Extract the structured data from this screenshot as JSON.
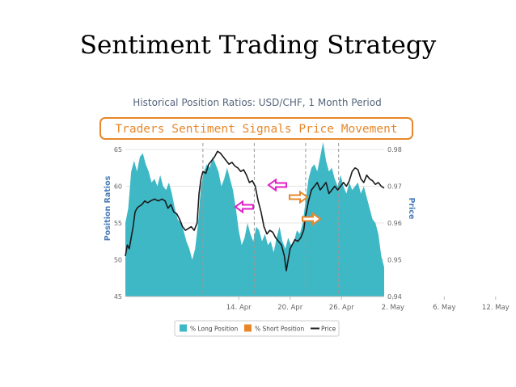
{
  "slide": {
    "title": "Sentiment Trading Strategy"
  },
  "chart_data": {
    "type": "area",
    "title": "Historical Position Ratios: USD/CHF, 1 Month Period",
    "banner": "Traders Sentiment Signals Price Movement",
    "xlabel": "",
    "ylabel": "Position Ratios",
    "y2label": "Price",
    "x_ticks": [
      "14. Apr",
      "20. Apr",
      "26. Apr",
      "2. May",
      "6. May",
      "12. May"
    ],
    "ylim": [
      45,
      65
    ],
    "y_ticks": [
      "45",
      "50",
      "55",
      "60",
      "65"
    ],
    "y2lim": [
      0.94,
      0.98
    ],
    "y2_ticks": [
      "0.94",
      "0.95",
      "0.96",
      "0.97",
      "0.98"
    ],
    "legend": [
      {
        "label": "% Long Position",
        "color": "#3fb8c6"
      },
      {
        "label": "% Short Position",
        "color": "#e8872a"
      },
      {
        "label": "Price",
        "color": "#222222"
      }
    ],
    "legend_position": "bottom",
    "dashed_vlines_days": [
      8.0,
      13.3,
      18.6,
      22.0
    ],
    "series": [
      {
        "name": "% Long Position",
        "axis": "left",
        "color": "#3fb8c6",
        "points": [
          [
            0.0,
            55.0
          ],
          [
            0.3,
            57.0
          ],
          [
            0.6,
            62.0
          ],
          [
            0.9,
            63.5
          ],
          [
            1.2,
            62.0
          ],
          [
            1.5,
            64.0
          ],
          [
            1.8,
            64.5
          ],
          [
            2.1,
            63.0
          ],
          [
            2.4,
            62.0
          ],
          [
            2.7,
            60.5
          ],
          [
            3.0,
            61.0
          ],
          [
            3.3,
            60.0
          ],
          [
            3.6,
            61.5
          ],
          [
            3.9,
            60.0
          ],
          [
            4.2,
            59.5
          ],
          [
            4.5,
            60.5
          ],
          [
            4.8,
            59.0
          ],
          [
            5.1,
            57.0
          ],
          [
            5.4,
            55.5
          ],
          [
            5.7,
            55.0
          ],
          [
            6.0,
            54.0
          ],
          [
            6.3,
            52.5
          ],
          [
            6.6,
            51.5
          ],
          [
            6.9,
            50.0
          ],
          [
            7.2,
            51.5
          ],
          [
            7.5,
            55.0
          ],
          [
            7.8,
            60.0
          ],
          [
            8.1,
            62.0
          ],
          [
            8.4,
            63.0
          ],
          [
            8.7,
            62.5
          ],
          [
            9.0,
            64.0
          ],
          [
            9.3,
            63.0
          ],
          [
            9.6,
            62.0
          ],
          [
            9.9,
            60.0
          ],
          [
            10.2,
            61.0
          ],
          [
            10.5,
            62.5
          ],
          [
            10.8,
            61.0
          ],
          [
            11.1,
            59.5
          ],
          [
            11.4,
            57.0
          ],
          [
            11.7,
            54.0
          ],
          [
            12.0,
            52.0
          ],
          [
            12.3,
            53.0
          ],
          [
            12.6,
            55.0
          ],
          [
            12.9,
            53.5
          ],
          [
            13.2,
            52.5
          ],
          [
            13.5,
            54.5
          ],
          [
            13.8,
            54.0
          ],
          [
            14.1,
            52.5
          ],
          [
            14.4,
            53.5
          ],
          [
            14.7,
            52.0
          ],
          [
            15.0,
            52.5
          ],
          [
            15.3,
            51.0
          ],
          [
            15.6,
            53.0
          ],
          [
            15.9,
            54.5
          ],
          [
            16.2,
            52.5
          ],
          [
            16.5,
            51.5
          ],
          [
            16.8,
            53.0
          ],
          [
            17.1,
            52.0
          ],
          [
            17.4,
            52.5
          ],
          [
            17.7,
            54.0
          ],
          [
            18.0,
            53.5
          ],
          [
            18.3,
            55.0
          ],
          [
            18.6,
            58.0
          ],
          [
            18.9,
            61.0
          ],
          [
            19.2,
            62.5
          ],
          [
            19.5,
            63.0
          ],
          [
            19.8,
            62.0
          ],
          [
            20.1,
            64.0
          ],
          [
            20.4,
            66.0
          ],
          [
            20.7,
            63.5
          ],
          [
            21.0,
            62.0
          ],
          [
            21.3,
            62.5
          ],
          [
            21.6,
            61.0
          ],
          [
            21.9,
            60.0
          ],
          [
            22.2,
            61.5
          ],
          [
            22.5,
            60.0
          ],
          [
            22.8,
            59.0
          ],
          [
            23.1,
            60.5
          ],
          [
            23.4,
            59.5
          ],
          [
            23.7,
            60.0
          ],
          [
            24.0,
            60.5
          ],
          [
            24.3,
            59.0
          ],
          [
            24.6,
            60.0
          ],
          [
            24.9,
            58.5
          ],
          [
            25.2,
            57.0
          ],
          [
            25.5,
            55.5
          ],
          [
            25.8,
            55.0
          ],
          [
            26.1,
            53.5
          ],
          [
            26.4,
            50.5
          ],
          [
            26.7,
            49.0
          ]
        ]
      },
      {
        "name": "Price",
        "axis": "right",
        "color": "#1a1a1a",
        "points": [
          [
            0.0,
            0.951
          ],
          [
            0.2,
            0.954
          ],
          [
            0.4,
            0.953
          ],
          [
            0.6,
            0.956
          ],
          [
            0.8,
            0.959
          ],
          [
            1.0,
            0.963
          ],
          [
            1.2,
            0.964
          ],
          [
            1.4,
            0.9645
          ],
          [
            1.7,
            0.965
          ],
          [
            2.0,
            0.966
          ],
          [
            2.3,
            0.9655
          ],
          [
            2.6,
            0.966
          ],
          [
            3.0,
            0.9665
          ],
          [
            3.4,
            0.966
          ],
          [
            3.8,
            0.9665
          ],
          [
            4.1,
            0.966
          ],
          [
            4.4,
            0.964
          ],
          [
            4.7,
            0.965
          ],
          [
            5.0,
            0.963
          ],
          [
            5.3,
            0.9625
          ],
          [
            5.6,
            0.961
          ],
          [
            5.9,
            0.959
          ],
          [
            6.2,
            0.958
          ],
          [
            6.5,
            0.9585
          ],
          [
            6.8,
            0.959
          ],
          [
            7.1,
            0.958
          ],
          [
            7.4,
            0.96
          ],
          [
            7.6,
            0.968
          ],
          [
            7.8,
            0.972
          ],
          [
            8.0,
            0.974
          ],
          [
            8.3,
            0.9735
          ],
          [
            8.6,
            0.976
          ],
          [
            8.9,
            0.977
          ],
          [
            9.2,
            0.978
          ],
          [
            9.5,
            0.9795
          ],
          [
            9.8,
            0.979
          ],
          [
            10.1,
            0.978
          ],
          [
            10.4,
            0.977
          ],
          [
            10.7,
            0.976
          ],
          [
            11.0,
            0.9765
          ],
          [
            11.3,
            0.9755
          ],
          [
            11.6,
            0.975
          ],
          [
            11.9,
            0.974
          ],
          [
            12.2,
            0.9745
          ],
          [
            12.5,
            0.973
          ],
          [
            12.8,
            0.971
          ],
          [
            13.1,
            0.9715
          ],
          [
            13.4,
            0.97
          ],
          [
            13.7,
            0.966
          ],
          [
            14.0,
            0.963
          ],
          [
            14.3,
            0.959
          ],
          [
            14.6,
            0.957
          ],
          [
            14.9,
            0.958
          ],
          [
            15.2,
            0.9575
          ],
          [
            15.5,
            0.956
          ],
          [
            15.8,
            0.955
          ],
          [
            16.1,
            0.954
          ],
          [
            16.4,
            0.951
          ],
          [
            16.6,
            0.947
          ],
          [
            16.8,
            0.95
          ],
          [
            17.0,
            0.953
          ],
          [
            17.2,
            0.954
          ],
          [
            17.5,
            0.9555
          ],
          [
            17.8,
            0.955
          ],
          [
            18.1,
            0.956
          ],
          [
            18.4,
            0.958
          ],
          [
            18.6,
            0.962
          ],
          [
            18.9,
            0.966
          ],
          [
            19.2,
            0.969
          ],
          [
            19.5,
            0.97
          ],
          [
            19.8,
            0.971
          ],
          [
            20.1,
            0.969
          ],
          [
            20.4,
            0.97
          ],
          [
            20.7,
            0.971
          ],
          [
            21.0,
            0.968
          ],
          [
            21.3,
            0.969
          ],
          [
            21.6,
            0.97
          ],
          [
            21.9,
            0.969
          ],
          [
            22.2,
            0.97
          ],
          [
            22.5,
            0.971
          ],
          [
            22.8,
            0.97
          ],
          [
            23.1,
            0.9715
          ],
          [
            23.4,
            0.974
          ],
          [
            23.7,
            0.975
          ],
          [
            24.0,
            0.9745
          ],
          [
            24.3,
            0.972
          ],
          [
            24.6,
            0.971
          ],
          [
            24.9,
            0.973
          ],
          [
            25.2,
            0.972
          ],
          [
            25.5,
            0.9715
          ],
          [
            25.8,
            0.9705
          ],
          [
            26.1,
            0.971
          ],
          [
            26.4,
            0.97
          ],
          [
            26.7,
            0.9695
          ]
        ]
      }
    ],
    "annotations": [
      {
        "name": "pink-arrow",
        "direction": "left",
        "color": "#e020c8"
      },
      {
        "name": "pink-arrow",
        "direction": "left",
        "color": "#e020c8"
      },
      {
        "name": "orange-arrow",
        "direction": "right",
        "color": "#e8872a"
      },
      {
        "name": "orange-arrow",
        "direction": "right",
        "color": "#e8872a"
      }
    ]
  }
}
